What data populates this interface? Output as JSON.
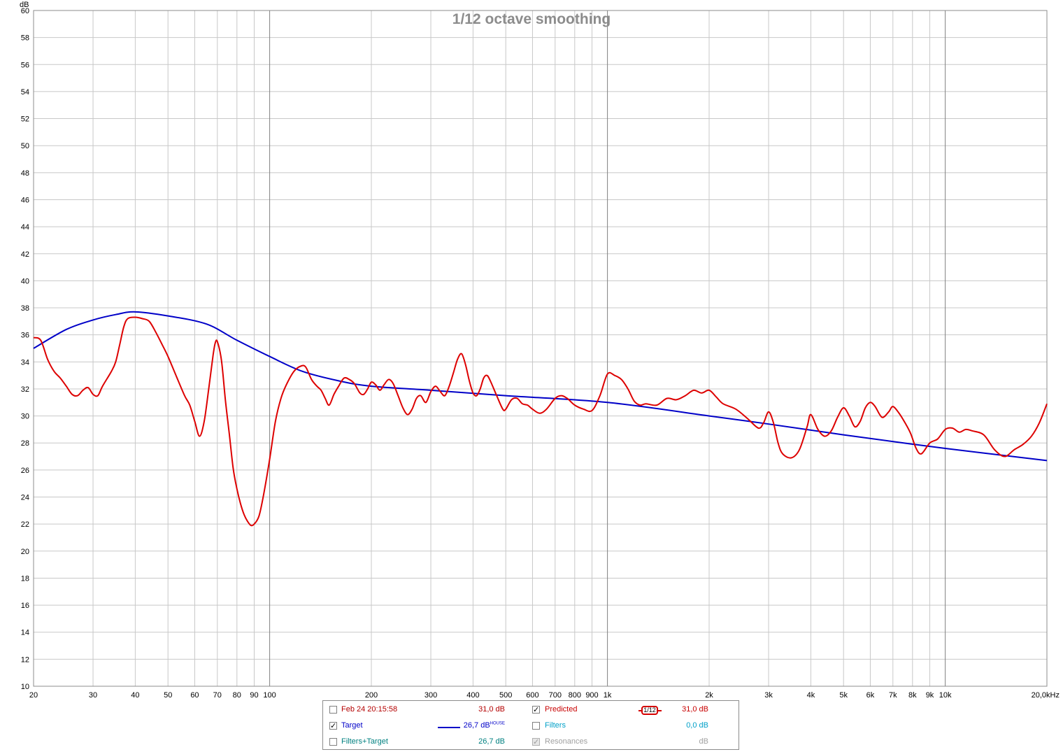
{
  "chart_data": {
    "type": "line",
    "title": "1/12 octave smoothing",
    "xlabel": "",
    "ylabel": "dB",
    "x_scale": "log",
    "xlim": [
      20,
      20000
    ],
    "ylim": [
      10,
      60
    ],
    "y_ticks": [
      10,
      12,
      14,
      16,
      18,
      20,
      22,
      24,
      26,
      28,
      30,
      32,
      34,
      36,
      38,
      40,
      42,
      44,
      46,
      48,
      50,
      52,
      54,
      56,
      58,
      60
    ],
    "x_ticks": [
      {
        "value": 20,
        "label": "20"
      },
      {
        "value": 30,
        "label": "30"
      },
      {
        "value": 40,
        "label": "40"
      },
      {
        "value": 50,
        "label": "50"
      },
      {
        "value": 60,
        "label": "60"
      },
      {
        "value": 70,
        "label": "70"
      },
      {
        "value": 80,
        "label": "80"
      },
      {
        "value": 90,
        "label": "90"
      },
      {
        "value": 100,
        "label": "100"
      },
      {
        "value": 200,
        "label": "200"
      },
      {
        "value": 300,
        "label": "300"
      },
      {
        "value": 400,
        "label": "400"
      },
      {
        "value": 500,
        "label": "500"
      },
      {
        "value": 600,
        "label": "600"
      },
      {
        "value": 700,
        "label": "700"
      },
      {
        "value": 800,
        "label": "800"
      },
      {
        "value": 900,
        "label": "900"
      },
      {
        "value": 1000,
        "label": "1k"
      },
      {
        "value": 2000,
        "label": "2k"
      },
      {
        "value": 3000,
        "label": "3k"
      },
      {
        "value": 4000,
        "label": "4k"
      },
      {
        "value": 5000,
        "label": "5k"
      },
      {
        "value": 6000,
        "label": "6k"
      },
      {
        "value": 7000,
        "label": "7k"
      },
      {
        "value": 8000,
        "label": "8k"
      },
      {
        "value": 9000,
        "label": "9k"
      },
      {
        "value": 10000,
        "label": "10k"
      },
      {
        "value": 20000,
        "label": "20,0kHz"
      }
    ],
    "grid": true,
    "legend_position": "bottom-center",
    "series": [
      {
        "name": "Target",
        "color": "#0000c8",
        "points": [
          [
            20,
            35.0
          ],
          [
            25,
            36.4
          ],
          [
            30,
            37.1
          ],
          [
            35,
            37.5
          ],
          [
            40,
            37.7
          ],
          [
            50,
            37.4
          ],
          [
            65,
            36.8
          ],
          [
            80,
            35.6
          ],
          [
            100,
            34.4
          ],
          [
            125,
            33.3
          ],
          [
            160,
            32.6
          ],
          [
            200,
            32.2
          ],
          [
            300,
            31.9
          ],
          [
            500,
            31.5
          ],
          [
            1000,
            31.0
          ],
          [
            2000,
            30.0
          ],
          [
            3000,
            29.4
          ],
          [
            5000,
            28.6
          ],
          [
            10000,
            27.6
          ],
          [
            20000,
            26.7
          ]
        ]
      },
      {
        "name": "Predicted",
        "color": "#dd0000",
        "points": [
          [
            20,
            35.8
          ],
          [
            21,
            35.6
          ],
          [
            22,
            34.2
          ],
          [
            23,
            33.3
          ],
          [
            24,
            32.8
          ],
          [
            25,
            32.2
          ],
          [
            26,
            31.6
          ],
          [
            27,
            31.5
          ],
          [
            28,
            31.9
          ],
          [
            29,
            32.1
          ],
          [
            30,
            31.6
          ],
          [
            31,
            31.5
          ],
          [
            32,
            32.2
          ],
          [
            34,
            33.3
          ],
          [
            35,
            34.0
          ],
          [
            36,
            35.3
          ],
          [
            37,
            36.6
          ],
          [
            38,
            37.2
          ],
          [
            40,
            37.3
          ],
          [
            42,
            37.2
          ],
          [
            44,
            37.0
          ],
          [
            46,
            36.2
          ],
          [
            48,
            35.3
          ],
          [
            50,
            34.4
          ],
          [
            53,
            32.9
          ],
          [
            56,
            31.5
          ],
          [
            58,
            30.8
          ],
          [
            60,
            29.6
          ],
          [
            62,
            28.5
          ],
          [
            64,
            29.6
          ],
          [
            66,
            32.0
          ],
          [
            68,
            34.5
          ],
          [
            69,
            35.4
          ],
          [
            70,
            35.5
          ],
          [
            72,
            34.1
          ],
          [
            74,
            31.1
          ],
          [
            76,
            28.6
          ],
          [
            78,
            26.1
          ],
          [
            80,
            24.6
          ],
          [
            82,
            23.5
          ],
          [
            84,
            22.7
          ],
          [
            86,
            22.2
          ],
          [
            88,
            21.9
          ],
          [
            90,
            22.0
          ],
          [
            93,
            22.6
          ],
          [
            96,
            24.2
          ],
          [
            100,
            26.8
          ],
          [
            104,
            29.6
          ],
          [
            108,
            31.3
          ],
          [
            112,
            32.3
          ],
          [
            118,
            33.3
          ],
          [
            124,
            33.7
          ],
          [
            128,
            33.6
          ],
          [
            133,
            32.7
          ],
          [
            138,
            32.2
          ],
          [
            142,
            31.9
          ],
          [
            146,
            31.3
          ],
          [
            150,
            30.8
          ],
          [
            155,
            31.6
          ],
          [
            160,
            32.2
          ],
          [
            166,
            32.8
          ],
          [
            172,
            32.7
          ],
          [
            178,
            32.4
          ],
          [
            185,
            31.7
          ],
          [
            190,
            31.6
          ],
          [
            195,
            32.0
          ],
          [
            200,
            32.5
          ],
          [
            206,
            32.3
          ],
          [
            212,
            31.9
          ],
          [
            218,
            32.3
          ],
          [
            225,
            32.7
          ],
          [
            232,
            32.4
          ],
          [
            240,
            31.5
          ],
          [
            248,
            30.6
          ],
          [
            256,
            30.1
          ],
          [
            264,
            30.5
          ],
          [
            272,
            31.3
          ],
          [
            280,
            31.5
          ],
          [
            290,
            31.0
          ],
          [
            300,
            31.8
          ],
          [
            310,
            32.2
          ],
          [
            320,
            31.8
          ],
          [
            330,
            31.5
          ],
          [
            340,
            32.2
          ],
          [
            350,
            33.2
          ],
          [
            360,
            34.2
          ],
          [
            370,
            34.6
          ],
          [
            380,
            33.8
          ],
          [
            390,
            32.6
          ],
          [
            400,
            31.7
          ],
          [
            410,
            31.5
          ],
          [
            420,
            32.0
          ],
          [
            430,
            32.8
          ],
          [
            440,
            33.0
          ],
          [
            450,
            32.6
          ],
          [
            470,
            31.5
          ],
          [
            490,
            30.5
          ],
          [
            500,
            30.5
          ],
          [
            520,
            31.2
          ],
          [
            540,
            31.3
          ],
          [
            560,
            30.9
          ],
          [
            580,
            30.8
          ],
          [
            600,
            30.5
          ],
          [
            630,
            30.2
          ],
          [
            660,
            30.5
          ],
          [
            700,
            31.3
          ],
          [
            730,
            31.5
          ],
          [
            760,
            31.3
          ],
          [
            800,
            30.8
          ],
          [
            850,
            30.5
          ],
          [
            900,
            30.4
          ],
          [
            950,
            31.5
          ],
          [
            1000,
            33.1
          ],
          [
            1050,
            33.0
          ],
          [
            1100,
            32.7
          ],
          [
            1150,
            32.0
          ],
          [
            1200,
            31.1
          ],
          [
            1250,
            30.8
          ],
          [
            1300,
            30.9
          ],
          [
            1400,
            30.8
          ],
          [
            1500,
            31.3
          ],
          [
            1600,
            31.2
          ],
          [
            1700,
            31.5
          ],
          [
            1800,
            31.9
          ],
          [
            1900,
            31.7
          ],
          [
            2000,
            31.9
          ],
          [
            2100,
            31.4
          ],
          [
            2200,
            30.9
          ],
          [
            2400,
            30.5
          ],
          [
            2600,
            29.8
          ],
          [
            2800,
            29.1
          ],
          [
            2900,
            29.5
          ],
          [
            3000,
            30.3
          ],
          [
            3100,
            29.5
          ],
          [
            3200,
            28.0
          ],
          [
            3300,
            27.2
          ],
          [
            3500,
            26.9
          ],
          [
            3700,
            27.5
          ],
          [
            3900,
            29.2
          ],
          [
            4000,
            30.1
          ],
          [
            4200,
            29.0
          ],
          [
            4400,
            28.5
          ],
          [
            4600,
            28.9
          ],
          [
            4800,
            29.9
          ],
          [
            5000,
            30.6
          ],
          [
            5200,
            30.0
          ],
          [
            5400,
            29.2
          ],
          [
            5600,
            29.6
          ],
          [
            5800,
            30.6
          ],
          [
            6000,
            31.0
          ],
          [
            6200,
            30.7
          ],
          [
            6500,
            29.9
          ],
          [
            6800,
            30.3
          ],
          [
            7000,
            30.7
          ],
          [
            7300,
            30.2
          ],
          [
            7600,
            29.5
          ],
          [
            7900,
            28.7
          ],
          [
            8200,
            27.6
          ],
          [
            8500,
            27.2
          ],
          [
            9000,
            28.0
          ],
          [
            9500,
            28.3
          ],
          [
            10000,
            29.0
          ],
          [
            10500,
            29.1
          ],
          [
            11000,
            28.8
          ],
          [
            11500,
            29.0
          ],
          [
            12000,
            28.9
          ],
          [
            13000,
            28.6
          ],
          [
            14000,
            27.5
          ],
          [
            15000,
            27.0
          ],
          [
            16000,
            27.5
          ],
          [
            17000,
            27.9
          ],
          [
            18000,
            28.5
          ],
          [
            19000,
            29.5
          ],
          [
            20000,
            30.9
          ]
        ]
      }
    ]
  },
  "legend": {
    "rows": [
      {
        "left": {
          "label": "Feb 24 20:15:58",
          "checked": false,
          "value": "31,0 dB",
          "color": "#b40000"
        },
        "right": {
          "label": "Predicted",
          "checked": true,
          "value": "31,0 dB",
          "color": "#c80000"
        }
      },
      {
        "left": {
          "label": "Target",
          "checked": true,
          "value": "26,7 dB",
          "sup": "HOUSE",
          "color": "#0000c8"
        },
        "right": {
          "label": "Filters",
          "checked": false,
          "value": "0,0 dB",
          "color": "#00a0c8"
        }
      },
      {
        "left": {
          "label": "Filters+Target",
          "checked": false,
          "value": "26,7 dB",
          "color": "#008080"
        },
        "right": {
          "label": "Resonances",
          "checked": true,
          "disabled": true,
          "value": "dB",
          "color": "#a0a0a0"
        }
      }
    ],
    "smoothing_badge": "1/12",
    "checkmark": "✓"
  }
}
